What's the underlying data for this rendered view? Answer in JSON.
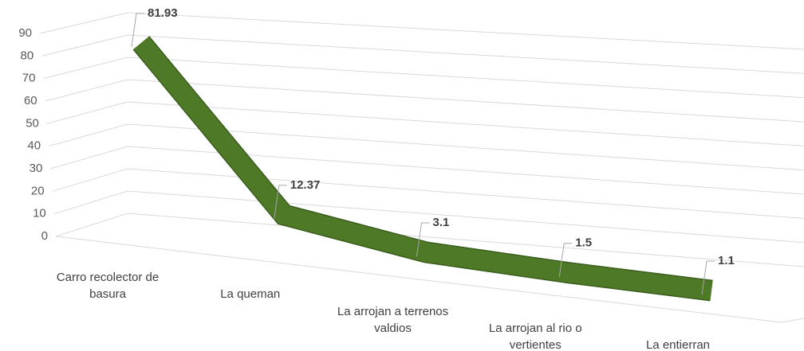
{
  "chart_data": {
    "type": "line3d",
    "categories": [
      "Carro recolector de basura",
      "La queman",
      "La arrojan  a terrenos valdios",
      "La arrojan al rio o vertientes",
      "La entierran"
    ],
    "values": [
      81.93,
      12.37,
      3.1,
      1.5,
      1.1
    ],
    "color": "#4e7a27",
    "ylim": [
      0,
      90
    ],
    "yticks": [
      0,
      10,
      20,
      30,
      40,
      50,
      60,
      70,
      80,
      90
    ],
    "grid": true
  }
}
